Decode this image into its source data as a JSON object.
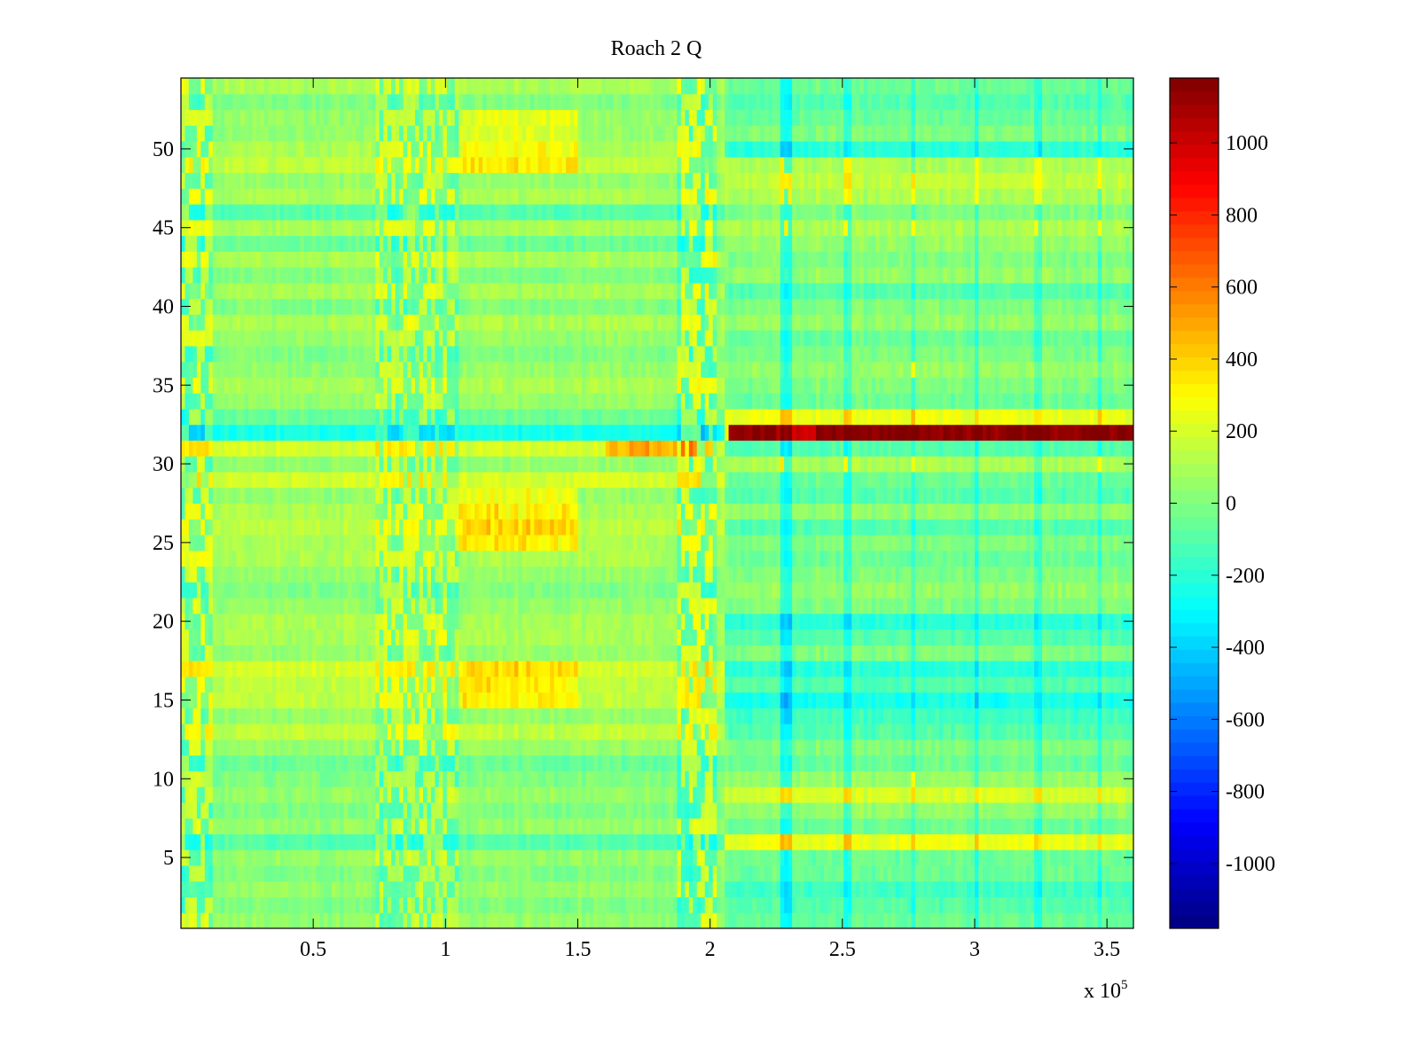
{
  "chart_data": {
    "type": "heatmap",
    "title": "Roach 2 Q",
    "xlabel": "",
    "ylabel": "",
    "x_multiplier_label": "x 10",
    "x_multiplier_exponent": "5",
    "xlim": [
      0,
      360000
    ],
    "ylim": [
      0.5,
      54.5
    ],
    "clim": [
      -1180,
      1180
    ],
    "colormap": "jet",
    "x_ticks": [
      50000,
      100000,
      150000,
      200000,
      250000,
      300000,
      350000
    ],
    "x_tick_labels": [
      "0.5",
      "1",
      "1.5",
      "2",
      "2.5",
      "3",
      "3.5"
    ],
    "y_ticks": [
      5,
      10,
      15,
      20,
      25,
      30,
      35,
      40,
      45,
      50
    ],
    "y_tick_labels": [
      "5",
      "10",
      "15",
      "20",
      "25",
      "30",
      "35",
      "40",
      "45",
      "50"
    ],
    "colorbar_ticks": [
      -1000,
      -800,
      -600,
      -400,
      -200,
      0,
      200,
      400,
      600,
      800,
      1000
    ],
    "colorbar_tick_labels": [
      "-1000",
      "-800",
      "-600",
      "-400",
      "-200",
      "0",
      "200",
      "400",
      "600",
      "800",
      "1000"
    ],
    "rows": 54,
    "regime_split_x": 205000,
    "row_values_left": [
      50,
      0,
      50,
      0,
      50,
      -100,
      50,
      0,
      50,
      0,
      -50,
      50,
      150,
      50,
      150,
      150,
      200,
      50,
      100,
      100,
      50,
      0,
      50,
      100,
      100,
      150,
      100,
      50,
      200,
      50,
      200,
      -250,
      -50,
      50,
      100,
      50,
      0,
      50,
      100,
      0,
      100,
      0,
      100,
      -50,
      100,
      -100,
      100,
      50,
      150,
      100,
      50,
      50,
      0,
      100
    ],
    "row_values_right": [
      -50,
      -100,
      -150,
      -50,
      -50,
      250,
      -50,
      50,
      200,
      50,
      -50,
      0,
      -100,
      -150,
      -250,
      -100,
      -200,
      0,
      -100,
      -200,
      0,
      50,
      0,
      -50,
      0,
      -100,
      50,
      -100,
      -50,
      100,
      -100,
      1150,
      250,
      -50,
      0,
      50,
      0,
      -50,
      50,
      0,
      -100,
      50,
      0,
      50,
      100,
      0,
      100,
      150,
      100,
      -200,
      0,
      -50,
      -100,
      -50
    ],
    "hotspots": [
      {
        "x": [
          105000,
          150000
        ],
        "y": [
          25,
          28
        ],
        "delta": 250
      },
      {
        "x": [
          105000,
          150000
        ],
        "y": [
          15,
          17
        ],
        "delta": 200
      },
      {
        "x": [
          105000,
          150000
        ],
        "y": [
          49,
          52
        ],
        "delta": 200
      },
      {
        "x": [
          160000,
          195000
        ],
        "y": [
          31,
          31
        ],
        "delta": 300
      },
      {
        "x": [
          225000,
          240000
        ],
        "y": [
          32,
          32
        ],
        "delta": -150
      }
    ],
    "stripe_regions": [
      {
        "x": [
          0,
          12000
        ],
        "amplitude": 200
      },
      {
        "x": [
          74000,
          105000
        ],
        "amplitude": 160
      },
      {
        "x": [
          188000,
          203000
        ],
        "amplitude": 220
      }
    ],
    "stripe_columns": [
      {
        "x": 228000,
        "amplitude": 300
      },
      {
        "x": 230000,
        "amplitude": 300
      },
      {
        "x": 252000,
        "amplitude": 250
      },
      {
        "x": 277000,
        "amplitude": 220
      },
      {
        "x": 300500,
        "amplitude": 250
      },
      {
        "x": 324000,
        "amplitude": 200
      },
      {
        "x": 347000,
        "amplitude": 220
      }
    ]
  }
}
